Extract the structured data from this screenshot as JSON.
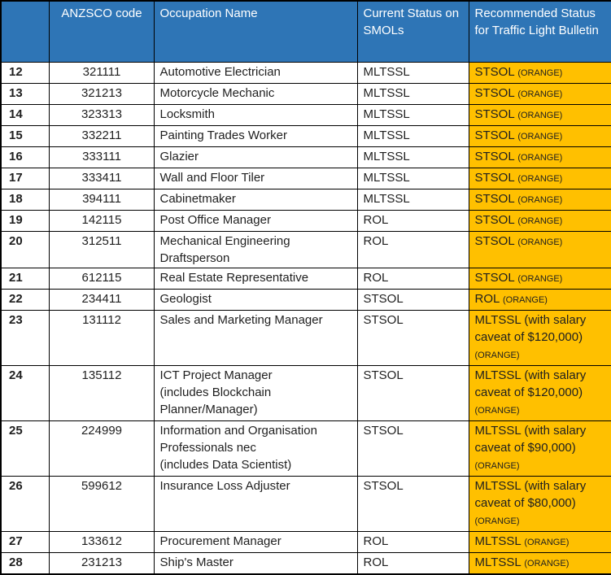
{
  "colors": {
    "header_bg": "#2E75B6",
    "header_text": "#FFFFFF",
    "highlight_bg": "#FFC000",
    "body_text": "#1F1F1F",
    "border": "#000000",
    "page_bg": "#FFFFFF"
  },
  "table": {
    "header": {
      "number_col": "",
      "anzsco": "ANZSCO code",
      "occupation": "Occupation Name",
      "current": "Current Status on SMOLs",
      "recommended": "Recommended Status for Traffic Light Bulletin"
    },
    "rows": [
      {
        "num": "12",
        "code": "321111",
        "occupation": "Automotive Electrician",
        "current": "MLTSSL",
        "recommended": "STSOL",
        "tag": "(ORANGE)"
      },
      {
        "num": "13",
        "code": "321213",
        "occupation": "Motorcycle Mechanic",
        "current": "MLTSSL",
        "recommended": "STSOL",
        "tag": "(ORANGE)"
      },
      {
        "num": "14",
        "code": "323313",
        "occupation": "Locksmith",
        "current": "MLTSSL",
        "recommended": "STSOL",
        "tag": "(ORANGE)"
      },
      {
        "num": "15",
        "code": "332211",
        "occupation": "Painting Trades Worker",
        "current": "MLTSSL",
        "recommended": "STSOL",
        "tag": "(ORANGE)"
      },
      {
        "num": "16",
        "code": "333111",
        "occupation": "Glazier",
        "current": "MLTSSL",
        "recommended": "STSOL",
        "tag": "(ORANGE)"
      },
      {
        "num": "17",
        "code": "333411",
        "occupation": "Wall and Floor Tiler",
        "current": "MLTSSL",
        "recommended": "STSOL",
        "tag": "(ORANGE)"
      },
      {
        "num": "18",
        "code": "394111",
        "occupation": "Cabinetmaker",
        "current": "MLTSSL",
        "recommended": "STSOL",
        "tag": "(ORANGE)"
      },
      {
        "num": "19",
        "code": "142115",
        "occupation": "Post Office Manager",
        "current": "ROL",
        "recommended": "STSOL",
        "tag": "(ORANGE)"
      },
      {
        "num": "20",
        "code": "312511",
        "occupation": "Mechanical Engineering\nDraftsperson",
        "current": "ROL",
        "recommended": "STSOL",
        "tag": "(ORANGE)"
      },
      {
        "num": "21",
        "code": "612115",
        "occupation": "Real Estate Representative",
        "current": "ROL",
        "recommended": "STSOL",
        "tag": "(ORANGE)"
      },
      {
        "num": "22",
        "code": "234411",
        "occupation": "Geologist",
        "current": "STSOL",
        "recommended": "ROL",
        "tag": "(ORANGE)"
      },
      {
        "num": "23",
        "code": "131112",
        "occupation": "Sales and Marketing Manager",
        "current": "STSOL",
        "recommended": "MLTSSL (with salary caveat of $120,000)",
        "tag": "(ORANGE)"
      },
      {
        "num": "24",
        "code": "135112",
        "occupation": "ICT Project Manager\n(includes Blockchain\nPlanner/Manager)",
        "current": "STSOL",
        "recommended": "MLTSSL (with salary caveat of $120,000)",
        "tag": "(ORANGE)"
      },
      {
        "num": "25",
        "code": "224999",
        "occupation": "Information and Organisation\nProfessionals nec\n(includes Data Scientist)",
        "current": "STSOL",
        "recommended": "MLTSSL (with salary caveat of $90,000)",
        "tag": "(ORANGE)"
      },
      {
        "num": "26",
        "code": "599612",
        "occupation": "Insurance Loss Adjuster",
        "current": "STSOL",
        "recommended": "MLTSSL (with salary caveat of $80,000)",
        "tag": "(ORANGE)"
      },
      {
        "num": "27",
        "code": "133612",
        "occupation": "Procurement Manager",
        "current": "ROL",
        "recommended": "MLTSSL",
        "tag": "(ORANGE)"
      },
      {
        "num": "28",
        "code": "231213",
        "occupation": "Ship's Master",
        "current": "ROL",
        "recommended": "MLTSSL",
        "tag": "(ORANGE)"
      }
    ]
  }
}
